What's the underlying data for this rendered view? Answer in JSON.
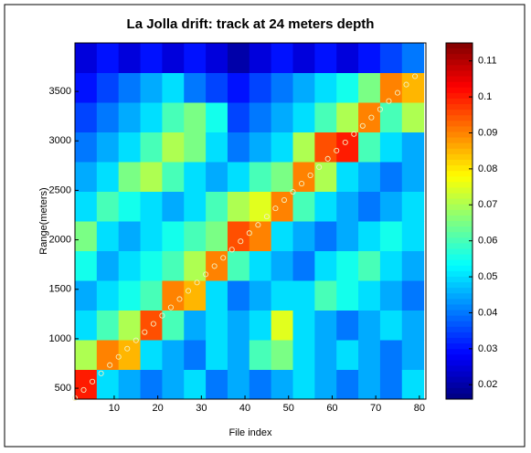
{
  "chart_data": {
    "type": "heatmap",
    "title": "La Jolla drift: track at 24 meters depth",
    "xlabel": "File index",
    "ylabel": "Range(meters)",
    "x_bins": [
      1,
      6,
      11,
      16,
      21,
      26,
      31,
      36,
      41,
      46,
      51,
      56,
      61,
      66,
      71,
      76,
      81
    ],
    "y_bins": [
      390,
      690,
      990,
      1290,
      1590,
      1890,
      2190,
      2490,
      2790,
      3090,
      3390,
      3690,
      3990
    ],
    "z": [
      [
        0.1,
        0.05,
        0.045,
        0.04,
        0.045,
        0.05,
        0.04,
        0.045,
        0.04,
        0.045,
        0.05,
        0.045,
        0.04,
        0.045,
        0.04,
        0.05
      ],
      [
        0.07,
        0.09,
        0.085,
        0.05,
        0.045,
        0.04,
        0.05,
        0.045,
        0.06,
        0.065,
        0.05,
        0.045,
        0.05,
        0.045,
        0.04,
        0.045
      ],
      [
        0.05,
        0.06,
        0.07,
        0.095,
        0.06,
        0.045,
        0.05,
        0.045,
        0.05,
        0.075,
        0.05,
        0.045,
        0.04,
        0.045,
        0.05,
        0.045
      ],
      [
        0.045,
        0.05,
        0.055,
        0.06,
        0.09,
        0.085,
        0.05,
        0.04,
        0.045,
        0.05,
        0.05,
        0.06,
        0.055,
        0.05,
        0.045,
        0.04
      ],
      [
        0.055,
        0.045,
        0.05,
        0.055,
        0.06,
        0.07,
        0.09,
        0.06,
        0.05,
        0.045,
        0.04,
        0.05,
        0.055,
        0.06,
        0.05,
        0.045
      ],
      [
        0.065,
        0.05,
        0.045,
        0.05,
        0.055,
        0.06,
        0.065,
        0.095,
        0.09,
        0.05,
        0.045,
        0.04,
        0.045,
        0.05,
        0.055,
        0.05
      ],
      [
        0.05,
        0.06,
        0.055,
        0.05,
        0.045,
        0.05,
        0.06,
        0.07,
        0.075,
        0.09,
        0.06,
        0.05,
        0.045,
        0.04,
        0.045,
        0.05
      ],
      [
        0.045,
        0.05,
        0.065,
        0.07,
        0.06,
        0.05,
        0.045,
        0.05,
        0.06,
        0.065,
        0.09,
        0.07,
        0.05,
        0.045,
        0.04,
        0.045
      ],
      [
        0.04,
        0.045,
        0.05,
        0.06,
        0.07,
        0.065,
        0.05,
        0.04,
        0.045,
        0.05,
        0.07,
        0.095,
        0.1,
        0.06,
        0.05,
        0.045
      ],
      [
        0.035,
        0.04,
        0.045,
        0.05,
        0.06,
        0.065,
        0.055,
        0.035,
        0.04,
        0.045,
        0.05,
        0.06,
        0.07,
        0.09,
        0.06,
        0.07
      ],
      [
        0.03,
        0.035,
        0.04,
        0.045,
        0.05,
        0.04,
        0.035,
        0.03,
        0.035,
        0.04,
        0.045,
        0.05,
        0.055,
        0.065,
        0.09,
        0.085
      ],
      [
        0.025,
        0.03,
        0.025,
        0.03,
        0.025,
        0.03,
        0.025,
        0.02,
        0.025,
        0.03,
        0.025,
        0.03,
        0.025,
        0.03,
        0.035,
        0.04
      ]
    ],
    "track": {
      "x": [
        1,
        3,
        5,
        7,
        9,
        11,
        13,
        15,
        17,
        19,
        21,
        23,
        25,
        27,
        29,
        31,
        33,
        35,
        37,
        39,
        41,
        43,
        45,
        47,
        49,
        51,
        53,
        55,
        57,
        59,
        61,
        63,
        65,
        67,
        69,
        71,
        73,
        75,
        77,
        79
      ],
      "y": [
        400,
        483,
        567,
        650,
        734,
        817,
        900,
        984,
        1067,
        1151,
        1234,
        1317,
        1401,
        1484,
        1568,
        1651,
        1734,
        1818,
        1901,
        1985,
        2068,
        2151,
        2235,
        2318,
        2402,
        2485,
        2568,
        2652,
        2735,
        2819,
        2902,
        2985,
        3069,
        3152,
        3236,
        3319,
        3402,
        3486,
        3569,
        3653
      ]
    },
    "xlim": [
      1,
      81.5
    ],
    "ylim": [
      390,
      3990
    ],
    "xticks": [
      10,
      20,
      30,
      40,
      50,
      60,
      70,
      80
    ],
    "yticks": [
      500,
      1000,
      1500,
      2000,
      2500,
      3000,
      3500
    ],
    "clim": [
      0.016,
      0.115
    ],
    "cticks": [
      0.02,
      0.03,
      0.04,
      0.05,
      0.06,
      0.07,
      0.08,
      0.09,
      0.1,
      0.11
    ],
    "colormap": "jet"
  }
}
